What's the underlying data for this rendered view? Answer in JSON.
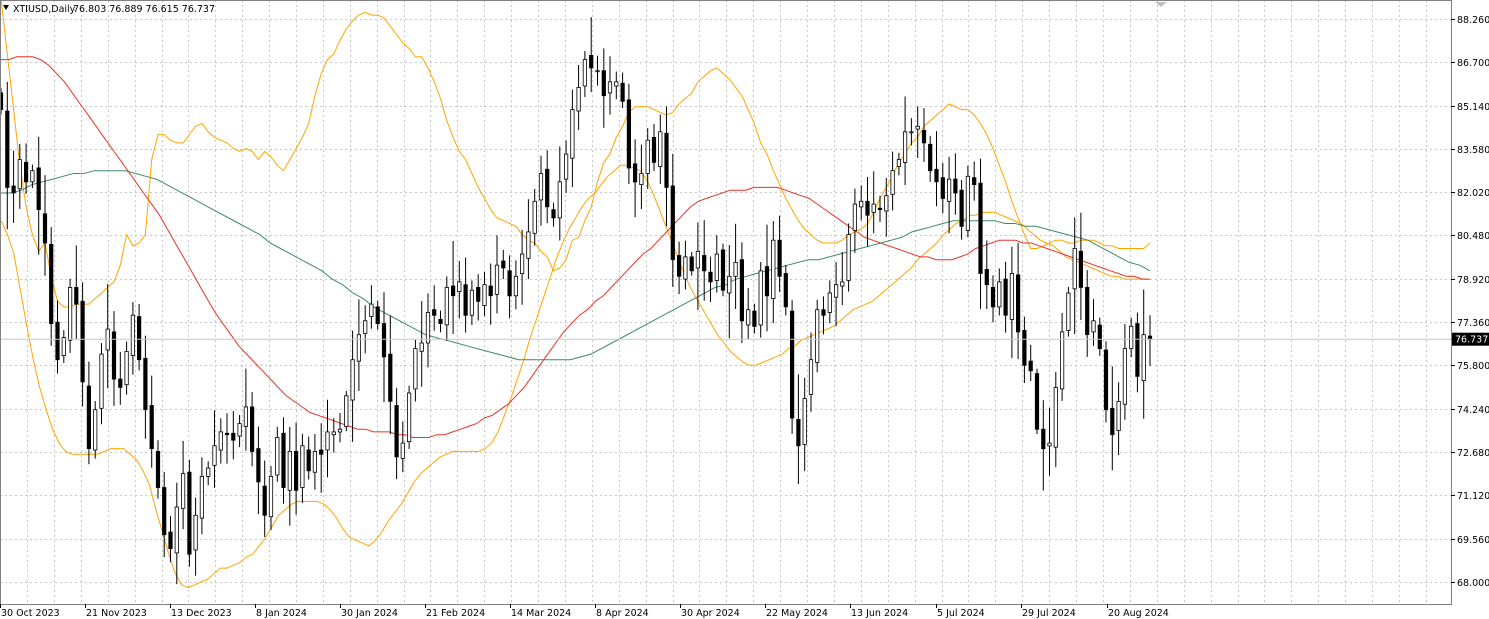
{
  "header": {
    "symbol_label": "XTIUSD,Daily",
    "ohlc_label": "76.803 76.889 76.615 76.737"
  },
  "chart_data": {
    "type": "candlestick",
    "symbol": "XTIUSD",
    "timeframe": "Daily",
    "last_price": 76.737,
    "last_price_label": "76.737",
    "ylim": [
      67.4,
      88.8
    ],
    "y_ticks": [
      "88.260",
      "86.700",
      "85.140",
      "83.580",
      "82.020",
      "80.480",
      "78.920",
      "77.360",
      "75.800",
      "74.240",
      "72.680",
      "71.120",
      "69.560",
      "68.000"
    ],
    "x_tick_labels": [
      "30 Oct 2023",
      "21 Nov 2023",
      "13 Dec 2023",
      "8 Jan 2024",
      "30 Jan 2024",
      "21 Feb 2024",
      "14 Mar 2024",
      "8 Apr 2024",
      "30 Apr 2024",
      "22 May 2024",
      "13 Jun 2024",
      "5 Jul 2024",
      "29 Jul 2024",
      "20 Aug 2024"
    ],
    "grid": true,
    "colors": {
      "bull_body": "#ffffff",
      "bear_body": "#000000",
      "wick": "#000000",
      "bollinger": "#ffa500",
      "ma_fast": "#e8332b",
      "ma_slow": "#3e8a68",
      "grid": "#c8c8c8",
      "price_tag_bg": "#000000",
      "price_tag_text": "#ffffff"
    },
    "candles_close": [
      85.0,
      82.2,
      82.0,
      83.2,
      82.4,
      82.8,
      81.4,
      80.2,
      77.3,
      76.0,
      76.8,
      78.6,
      78.0,
      75.2,
      72.8,
      74.2,
      76.2,
      77.1,
      75.3,
      75.0,
      76.3,
      77.6,
      76.0,
      74.2,
      72.8,
      71.4,
      69.7,
      69.2,
      70.7,
      71.9,
      69.0,
      70.4,
      71.8,
      72.1,
      72.9,
      73.4,
      73.3,
      73.1,
      73.7,
      74.3,
      72.7,
      71.6,
      70.4,
      71.8,
      73.2,
      71.4,
      72.7,
      71.3,
      72.9,
      72.0,
      72.7,
      72.6,
      73.4,
      73.4,
      73.5,
      74.7,
      76.0,
      76.9,
      77.4,
      78.0,
      77.3,
      76.1,
      74.5,
      72.5,
      73.0,
      74.8,
      76.4,
      76.6,
      77.7,
      77.6,
      77.3,
      78.6,
      78.3,
      78.8,
      77.6,
      78.5,
      78.1,
      78.7,
      78.3,
      79.4,
      79.3,
      78.3,
      79.0,
      79.8,
      80.6,
      81.7,
      82.7,
      81.5,
      81.1,
      82.4,
      83.4,
      85.0,
      85.8,
      86.8,
      86.5,
      86.4,
      85.5,
      86.0,
      86.0,
      85.3,
      82.9,
      82.4,
      82.7,
      83.9,
      83.1,
      84.2,
      82.2,
      79.6,
      79.0,
      79.7,
      79.2,
      79.9,
      79.2,
      78.8,
      79.8,
      78.5,
      79.0,
      79.5,
      77.4,
      77.8,
      77.2,
      79.2,
      78.3,
      80.3,
      79.0,
      77.9,
      73.9,
      72.9,
      74.6,
      76.0,
      77.8,
      77.6,
      78.4,
      78.7,
      78.8,
      80.5,
      81.6,
      81.7,
      81.2,
      81.6,
      81.4,
      81.9,
      82.8,
      83.2,
      84.2,
      84.2,
      84.4,
      83.8,
      82.8,
      82.4,
      81.8,
      82.5,
      82.0,
      80.8,
      82.6,
      82.3,
      79.1,
      78.7,
      77.9,
      78.8,
      77.6,
      79.1,
      77.0,
      75.8,
      75.6,
      73.5,
      72.8,
      73.0,
      75.0,
      77.0,
      78.4,
      80.0,
      78.6,
      76.9,
      77.4,
      76.4,
      74.2,
      73.3,
      74.5,
      76.4,
      77.2,
      75.4,
      76.9,
      76.737
    ],
    "bollinger_upper": [
      89.0,
      87.0,
      85.0,
      83.0,
      81.5,
      80.5,
      79.9,
      80.2,
      79.0,
      78.1,
      77.9,
      77.9,
      78.0,
      78.0,
      78.0,
      78.2,
      78.4,
      78.6,
      78.8,
      79.4,
      80.5,
      80.1,
      80.2,
      80.5,
      83.2,
      84.1,
      84.1,
      83.9,
      83.8,
      83.8,
      84.1,
      84.4,
      84.5,
      84.2,
      84.0,
      83.9,
      83.8,
      83.6,
      83.5,
      83.6,
      83.5,
      83.2,
      83.5,
      83.3,
      83.0,
      82.8,
      83.2,
      83.6,
      84.0,
      84.5,
      85.5,
      86.3,
      86.8,
      87.0,
      87.5,
      87.9,
      88.2,
      88.4,
      88.5,
      88.4,
      88.4,
      88.3,
      88.0,
      87.7,
      87.4,
      87.2,
      86.9,
      86.9,
      86.5,
      86.0,
      85.4,
      84.6,
      84.0,
      83.5,
      83.2,
      82.7,
      82.2,
      81.8,
      81.4,
      81.1,
      81.0,
      80.9,
      80.8,
      80.5,
      80.3,
      80.2,
      79.9,
      79.7,
      79.2,
      79.3,
      79.6,
      80.3,
      80.4,
      81.0,
      81.5,
      82.4,
      83.1,
      83.4,
      84.0,
      84.4,
      84.9,
      85.1,
      85.1,
      85.1,
      85.0,
      84.9,
      84.8,
      84.9,
      85.2,
      85.4,
      85.6,
      86.0,
      86.2,
      86.4,
      86.5,
      86.3,
      86.1,
      85.8,
      85.5,
      85.0,
      84.5,
      83.8,
      83.4,
      82.8,
      82.3,
      81.8,
      81.4,
      81.0,
      80.7,
      80.5,
      80.3,
      80.2,
      80.2,
      80.2,
      80.3,
      80.5,
      80.6,
      80.7,
      80.9,
      81.3,
      81.8,
      82.2,
      82.6,
      83.1,
      83.4,
      83.8,
      84.0,
      84.4,
      84.6,
      84.8,
      85.0,
      85.2,
      85.1,
      85.0,
      85.0,
      84.8,
      84.5,
      84.1,
      83.6,
      83.0,
      82.4,
      81.7,
      81.1,
      80.5,
      80.0,
      80.0,
      80.1,
      80.2,
      80.3,
      80.3,
      80.2,
      80.2,
      80.3,
      80.3,
      80.3,
      80.2,
      80.1,
      80.1,
      80.0,
      80.0,
      80.0,
      80.0,
      80.0,
      80.2
    ],
    "bollinger_mid": [
      81.0,
      80.9,
      80.8,
      80.7,
      80.5,
      80.2,
      79.8,
      79.3,
      78.6,
      77.8,
      77.1,
      76.6,
      76.0,
      75.6,
      75.1,
      74.6,
      74.1,
      73.8,
      73.5,
      73.2,
      72.9,
      72.5,
      72.2,
      71.9,
      71.5,
      71.1,
      70.8,
      70.5,
      70.3,
      70.1,
      70.0,
      70.0,
      70.1,
      70.3,
      70.5,
      70.7,
      70.9,
      71.0,
      71.1,
      71.2,
      71.3,
      71.4,
      71.5,
      71.6,
      71.8,
      72.0,
      72.3,
      72.6,
      73.0,
      73.5,
      74.0,
      74.5,
      75.0,
      75.6,
      76.2,
      76.7,
      77.2,
      77.6,
      77.9,
      78.2,
      78.4,
      78.6,
      78.7,
      78.8,
      78.9,
      79.0,
      79.2,
      79.4,
      79.7,
      80.1,
      80.5,
      81.0,
      81.5,
      82.0,
      82.4,
      82.7,
      82.9,
      83.1,
      83.3,
      83.5,
      83.6,
      83.7,
      83.8,
      83.9,
      83.9,
      83.9,
      83.9,
      83.8,
      83.7,
      83.5,
      83.2,
      82.9,
      82.6,
      82.3,
      82.0,
      81.7,
      81.4,
      81.0,
      80.6,
      80.2,
      79.8,
      79.4,
      79.0,
      78.6,
      78.3,
      78.0,
      77.8,
      77.8,
      77.9,
      78.0,
      78.1,
      78.3,
      78.5,
      78.7,
      78.9,
      79.1,
      79.3,
      79.5,
      79.7,
      79.9,
      80.1,
      80.3,
      80.5,
      80.8,
      81.0,
      81.2,
      81.2,
      81.2,
      81.2,
      81.2,
      81.1,
      81.0,
      80.9,
      80.8,
      80.6,
      80.5,
      80.3,
      80.1,
      79.9,
      79.6,
      79.3,
      79.0,
      78.6,
      78.2,
      77.8,
      77.4,
      77.0,
      76.7,
      76.4,
      76.2,
      76.0,
      75.8,
      75.7,
      75.6,
      75.5,
      75.4,
      75.4,
      75.4,
      75.4,
      75.5,
      75.6,
      75.8,
      76.0,
      76.1,
      76.2,
      76.3,
      76.4,
      76.5,
      76.5,
      76.6,
      76.6,
      76.6,
      76.6,
      76.6,
      76.6,
      76.6,
      76.6,
      76.6,
      76.6,
      76.6,
      76.6,
      76.6,
      76.6
    ],
    "bollinger_lower": [
      81.0,
      80.5,
      79.8,
      78.5,
      77.2,
      76.0,
      75.0,
      74.2,
      73.5,
      73.0,
      72.7,
      72.6,
      72.6,
      72.6,
      72.6,
      72.6,
      72.7,
      72.8,
      72.8,
      72.8,
      72.6,
      72.4,
      72.0,
      71.5,
      70.6,
      69.8,
      69.0,
      68.3,
      67.9,
      67.8,
      67.9,
      68.0,
      68.1,
      68.3,
      68.5,
      68.5,
      68.6,
      68.7,
      68.9,
      69.0,
      69.3,
      69.6,
      70.0,
      70.4,
      70.6,
      70.8,
      70.9,
      70.9,
      70.9,
      70.9,
      70.8,
      70.6,
      70.3,
      69.9,
      69.6,
      69.5,
      69.4,
      69.3,
      69.5,
      69.8,
      70.2,
      70.5,
      70.8,
      71.2,
      71.6,
      71.9,
      72.1,
      72.3,
      72.5,
      72.6,
      72.7,
      72.7,
      72.7,
      72.7,
      72.7,
      72.8,
      73.0,
      73.4,
      74.0,
      74.6,
      75.3,
      76.0,
      76.8,
      77.5,
      78.2,
      78.9,
      79.6,
      80.2,
      80.7,
      81.1,
      81.5,
      81.8,
      82.0,
      82.3,
      82.6,
      82.8,
      83.0,
      83.0,
      82.9,
      82.8,
      82.5,
      82.0,
      81.4,
      80.8,
      80.2,
      79.6,
      79.0,
      78.5,
      78.1,
      77.7,
      77.3,
      76.9,
      76.6,
      76.3,
      76.1,
      75.9,
      75.8,
      75.8,
      75.9,
      76.0,
      76.1,
      76.2,
      76.4,
      76.5,
      76.7,
      76.8,
      76.9,
      77.0,
      77.1,
      77.2,
      77.4,
      77.6,
      77.8,
      77.9,
      78.0,
      78.1,
      78.3,
      78.5,
      78.7,
      78.9,
      79.1,
      79.3,
      79.6,
      79.8,
      80.0,
      80.2,
      80.5,
      80.7,
      80.9,
      81.0,
      81.2,
      81.2,
      81.3,
      81.3,
      81.3,
      81.2,
      81.1,
      81.0,
      80.9,
      80.7,
      80.5,
      80.3,
      80.2,
      80.1,
      79.9,
      79.7,
      79.6,
      79.5,
      79.4,
      79.3,
      79.2,
      79.1,
      79.0,
      79.0,
      78.9,
      78.9,
      78.9,
      78.9,
      78.9
    ],
    "ma_fast": [
      86.8,
      86.8,
      86.9,
      86.9,
      86.9,
      86.8,
      86.6,
      86.3,
      86.0,
      85.6,
      85.2,
      84.8,
      84.4,
      84.0,
      83.6,
      83.2,
      82.8,
      82.4,
      82.0,
      81.6,
      81.2,
      80.7,
      80.2,
      79.7,
      79.2,
      78.7,
      78.2,
      77.7,
      77.3,
      76.9,
      76.5,
      76.2,
      75.9,
      75.6,
      75.3,
      75.0,
      74.7,
      74.5,
      74.3,
      74.1,
      74.0,
      73.9,
      73.8,
      73.7,
      73.6,
      73.5,
      73.5,
      73.4,
      73.4,
      73.4,
      73.3,
      73.3,
      73.2,
      73.2,
      73.2,
      73.3,
      73.3,
      73.4,
      73.5,
      73.6,
      73.7,
      73.9,
      74.0,
      74.2,
      74.4,
      74.7,
      75.0,
      75.4,
      75.8,
      76.2,
      76.6,
      77.0,
      77.3,
      77.6,
      77.8,
      78.1,
      78.3,
      78.6,
      78.9,
      79.2,
      79.5,
      79.8,
      80.0,
      80.3,
      80.6,
      80.9,
      81.2,
      81.5,
      81.7,
      81.8,
      81.9,
      82.0,
      82.1,
      82.1,
      82.1,
      82.2,
      82.2,
      82.2,
      82.2,
      82.1,
      82.0,
      81.9,
      81.8,
      81.6,
      81.4,
      81.2,
      81.0,
      80.8,
      80.6,
      80.4,
      80.3,
      80.2,
      80.1,
      80.0,
      79.9,
      79.8,
      79.7,
      79.7,
      79.6,
      79.6,
      79.6,
      79.7,
      79.8,
      80.0,
      80.1,
      80.2,
      80.3,
      80.3,
      80.3,
      80.2,
      80.2,
      80.1,
      80.0,
      79.9,
      79.8,
      79.7,
      79.6,
      79.5,
      79.4,
      79.3,
      79.2,
      79.1,
      79.0,
      79.0,
      78.9,
      78.9
    ],
    "ma_slow": [
      82.0,
      82.0,
      82.1,
      82.3,
      82.4,
      82.5,
      82.6,
      82.7,
      82.7,
      82.8,
      82.8,
      82.8,
      82.8,
      82.7,
      82.6,
      82.5,
      82.3,
      82.1,
      81.9,
      81.7,
      81.5,
      81.3,
      81.1,
      80.9,
      80.7,
      80.5,
      80.2,
      80.0,
      79.8,
      79.6,
      79.4,
      79.2,
      78.9,
      78.7,
      78.4,
      78.2,
      77.9,
      77.7,
      77.5,
      77.3,
      77.1,
      76.9,
      76.8,
      76.7,
      76.6,
      76.5,
      76.4,
      76.3,
      76.2,
      76.1,
      76.0,
      76.0,
      76.0,
      76.0,
      76.0,
      76.0,
      76.1,
      76.2,
      76.4,
      76.6,
      76.8,
      77.0,
      77.2,
      77.4,
      77.6,
      77.8,
      78.0,
      78.2,
      78.4,
      78.6,
      78.7,
      78.9,
      79.0,
      79.1,
      79.2,
      79.3,
      79.4,
      79.5,
      79.6,
      79.6,
      79.7,
      79.8,
      79.9,
      80.0,
      80.1,
      80.2,
      80.3,
      80.4,
      80.6,
      80.7,
      80.8,
      80.9,
      81.0,
      81.0,
      81.0,
      81.0,
      81.0,
      80.9,
      80.9,
      80.8,
      80.8,
      80.7,
      80.6,
      80.5,
      80.4,
      80.3,
      80.1,
      79.9,
      79.7,
      79.5,
      79.4,
      79.2
    ]
  }
}
